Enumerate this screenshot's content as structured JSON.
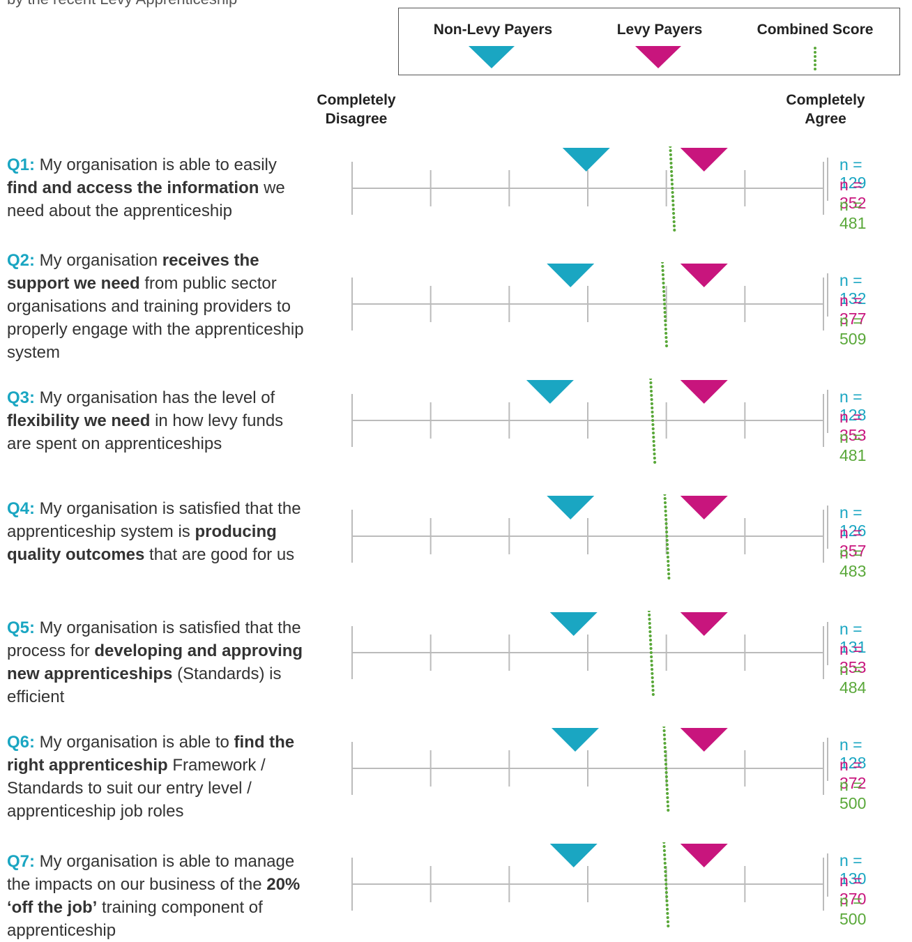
{
  "intro_text": "by the recent Levy Apprenticeship",
  "legend": {
    "non_levy": "Non-Levy Payers",
    "levy": "Levy Payers",
    "combined": "Combined Score"
  },
  "scale": {
    "left_label": [
      "Completely",
      "Disagree"
    ],
    "right_label": [
      "Completely",
      "Agree"
    ]
  },
  "colors": {
    "non_levy": "#1aa6c2",
    "levy": "#c8157d",
    "combined": "#5aa83a",
    "axis": "#bbbbbb",
    "question_id": "#1aa6c2"
  },
  "questions": [
    {
      "id": "Q1:",
      "segments": [
        {
          "t": " My organisation is able to easily "
        },
        {
          "t": "find and access the information",
          "b": true
        },
        {
          "t": " we need about the apprenticeship"
        }
      ],
      "n": {
        "non_levy": "n = 129",
        "levy": "n = 352",
        "combined": "n = 481"
      }
    },
    {
      "id": "Q2:",
      "segments": [
        {
          "t": " My organisation "
        },
        {
          "t": "receives the support we need",
          "b": true
        },
        {
          "t": " from public sector organisations and training providers to properly engage with the apprenticeship system"
        }
      ],
      "n": {
        "non_levy": "n = 132",
        "levy": "n = 377",
        "combined": "n = 509"
      }
    },
    {
      "id": "Q3:",
      "segments": [
        {
          "t": " My organisation has the level of "
        },
        {
          "t": "flexibility we need",
          "b": true
        },
        {
          "t": " in how levy funds are spent on apprenticeships"
        }
      ],
      "n": {
        "non_levy": "n = 128",
        "levy": "n = 353",
        "combined": "n = 481"
      }
    },
    {
      "id": "Q4:",
      "segments": [
        {
          "t": " My organisation is satisfied that the apprenticeship system is "
        },
        {
          "t": "producing quality outcomes",
          "b": true
        },
        {
          "t": " that are good for us"
        }
      ],
      "n": {
        "non_levy": "n = 126",
        "levy": "n = 357",
        "combined": "n = 483"
      }
    },
    {
      "id": "Q5:",
      "segments": [
        {
          "t": " My organisation is satisfied that the process for "
        },
        {
          "t": "developing and approving new apprenticeships",
          "b": true
        },
        {
          "t": " (Standards) is efficient"
        }
      ],
      "n": {
        "non_levy": "n = 131",
        "levy": "n = 353",
        "combined": "n = 484"
      }
    },
    {
      "id": "Q6:",
      "segments": [
        {
          "t": " My organisation is able to "
        },
        {
          "t": "find the right apprenticeship",
          "b": true
        },
        {
          "t": " Framework / Standards to suit our entry level / apprenticeship job roles"
        }
      ],
      "n": {
        "non_levy": "n = 128",
        "levy": "n = 372",
        "combined": "n = 500"
      }
    },
    {
      "id": "Q7:",
      "segments": [
        {
          "t": " My organisation is able to manage the impacts on our business of the "
        },
        {
          "t": "20% ‘off the job’",
          "b": true
        },
        {
          "t": " training component of apprenticeship"
        }
      ],
      "n": {
        "non_levy": "n = 130",
        "levy": "n = 370",
        "combined": "n = 500"
      }
    }
  ],
  "chart_data": {
    "type": "scatter",
    "scale_min": 0,
    "scale_max": 6,
    "ticks": [
      0,
      1,
      2,
      3,
      4,
      5,
      6
    ],
    "categories": [
      "Q1",
      "Q2",
      "Q3",
      "Q4",
      "Q5",
      "Q6",
      "Q7"
    ],
    "series": [
      {
        "name": "Non-Levy Payers",
        "marker": "triangle-down",
        "values": [
          2.98,
          2.78,
          2.52,
          2.78,
          2.82,
          2.84,
          2.82
        ]
      },
      {
        "name": "Levy Payers",
        "marker": "triangle-down",
        "values": [
          4.48,
          4.48,
          4.48,
          4.48,
          4.48,
          4.48,
          4.48
        ]
      },
      {
        "name": "Combined Score",
        "marker": "dotted-line",
        "values": [
          4.05,
          3.95,
          3.8,
          3.98,
          3.78,
          3.97,
          3.97
        ]
      }
    ]
  }
}
